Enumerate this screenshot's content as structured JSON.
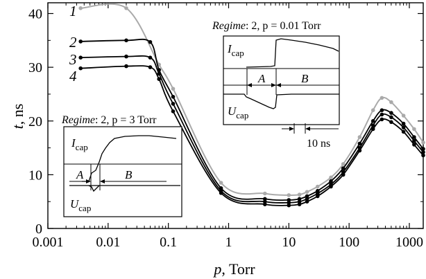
{
  "chart_data": {
    "type": "line",
    "xlabel": "p",
    "xlabel_unit": ", Torr",
    "ylabel": "t",
    "ylabel_unit": ", ns",
    "xscale": "log",
    "xlim": [
      0.001,
      1700
    ],
    "ylim": [
      0,
      42
    ],
    "x_ticks": [
      0.001,
      0.01,
      0.1,
      1,
      10,
      100,
      1000
    ],
    "x_tick_labels": [
      "0.001",
      "0.01",
      "0.1",
      "1",
      "10",
      "100",
      "1000"
    ],
    "y_ticks": [
      0,
      10,
      20,
      30,
      40
    ],
    "y_tick_labels": [
      "0",
      "10",
      "20",
      "30",
      "40"
    ],
    "grid": false,
    "series": [
      {
        "name": "1",
        "color": "#aaaaaa",
        "x": [
          0.0035,
          0.02,
          0.07,
          0.12,
          0.75,
          4,
          10,
          15,
          20,
          30,
          50,
          80,
          150,
          250,
          350,
          500,
          800,
          1200,
          1700
        ],
        "y": [
          41,
          41,
          30.5,
          26,
          8.5,
          6.5,
          6.2,
          6.3,
          6.8,
          7.8,
          9.5,
          12,
          17,
          22,
          24.3,
          23.5,
          21,
          18.5,
          16
        ]
      },
      {
        "name": "2",
        "color": "#000000",
        "x": [
          0.0035,
          0.02,
          0.05,
          0.07,
          0.12,
          0.75,
          4,
          10,
          15,
          20,
          30,
          50,
          80,
          150,
          250,
          350,
          500,
          800,
          1200,
          1700
        ],
        "y": [
          34.8,
          35,
          34.7,
          29.5,
          24.5,
          7.5,
          5.5,
          5.3,
          5.5,
          6,
          7,
          8.8,
          11.2,
          15.8,
          20,
          22,
          21.5,
          19.5,
          17,
          14.8
        ]
      },
      {
        "name": "3",
        "color": "#000000",
        "x": [
          0.0035,
          0.02,
          0.05,
          0.07,
          0.12,
          0.75,
          4,
          10,
          15,
          20,
          30,
          50,
          80,
          150,
          250,
          350,
          500,
          800,
          1200,
          1700
        ],
        "y": [
          31.8,
          32,
          31.8,
          28.8,
          23.2,
          7,
          5,
          4.8,
          5,
          5.5,
          6.5,
          8.2,
          10.5,
          15,
          19.2,
          21.2,
          20.7,
          18.8,
          16.3,
          14.2
        ]
      },
      {
        "name": "4",
        "color": "#000000",
        "x": [
          0.0035,
          0.02,
          0.05,
          0.07,
          0.12,
          0.75,
          4,
          10,
          15,
          20,
          30,
          50,
          80,
          150,
          250,
          350,
          500,
          800,
          1200,
          1700
        ],
        "y": [
          29.8,
          30.2,
          30,
          27.8,
          21.8,
          6.6,
          4.5,
          4.3,
          4.5,
          5,
          6,
          7.8,
          10,
          14.5,
          18.5,
          20.3,
          19.8,
          18,
          15.6,
          13.6
        ]
      }
    ],
    "insets": [
      {
        "title_prefix": "Regime",
        "title_suffix": ": 2, p = 3 Torr",
        "i_label": "I",
        "i_sub": "cap",
        "u_label": "U",
        "u_sub": "cap",
        "a_label": "A",
        "b_label": "B"
      },
      {
        "title_prefix": "Regime",
        "title_suffix": ": 2, p = 0.01 Torr",
        "i_label": "I",
        "i_sub": "cap",
        "u_label": "U",
        "u_sub": "cap",
        "a_label": "A",
        "b_label": "B",
        "scale_label": "10 ns"
      }
    ]
  }
}
